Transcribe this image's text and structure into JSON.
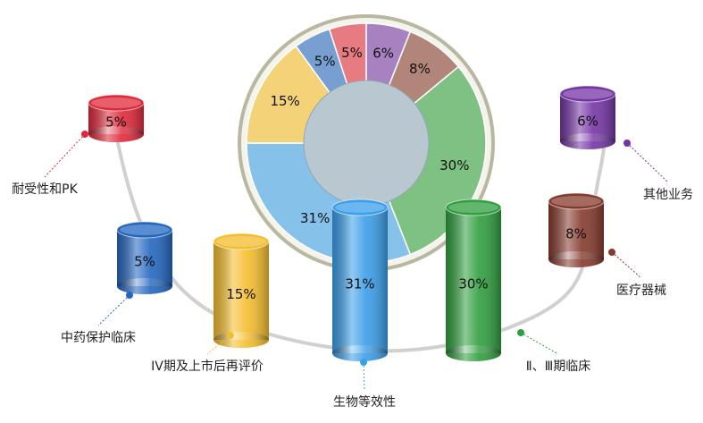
{
  "chart_data": {
    "type": "pie",
    "categories": [
      "耐受性和PK",
      "中药保护临床",
      "IV期及上市后再评价",
      "生物等效性",
      "Ⅱ、Ⅲ期临床",
      "医疗器械",
      "其他业务"
    ],
    "values": [
      5,
      5,
      15,
      31,
      30,
      8,
      6
    ],
    "value_labels": [
      "5%",
      "5%",
      "15%",
      "31%",
      "30%",
      "8%",
      "6%"
    ],
    "colors": [
      "#e0283a",
      "#2366c0",
      "#f4bd2c",
      "#3a9ee8",
      "#2f9e3e",
      "#853a2e",
      "#7434a4"
    ]
  }
}
